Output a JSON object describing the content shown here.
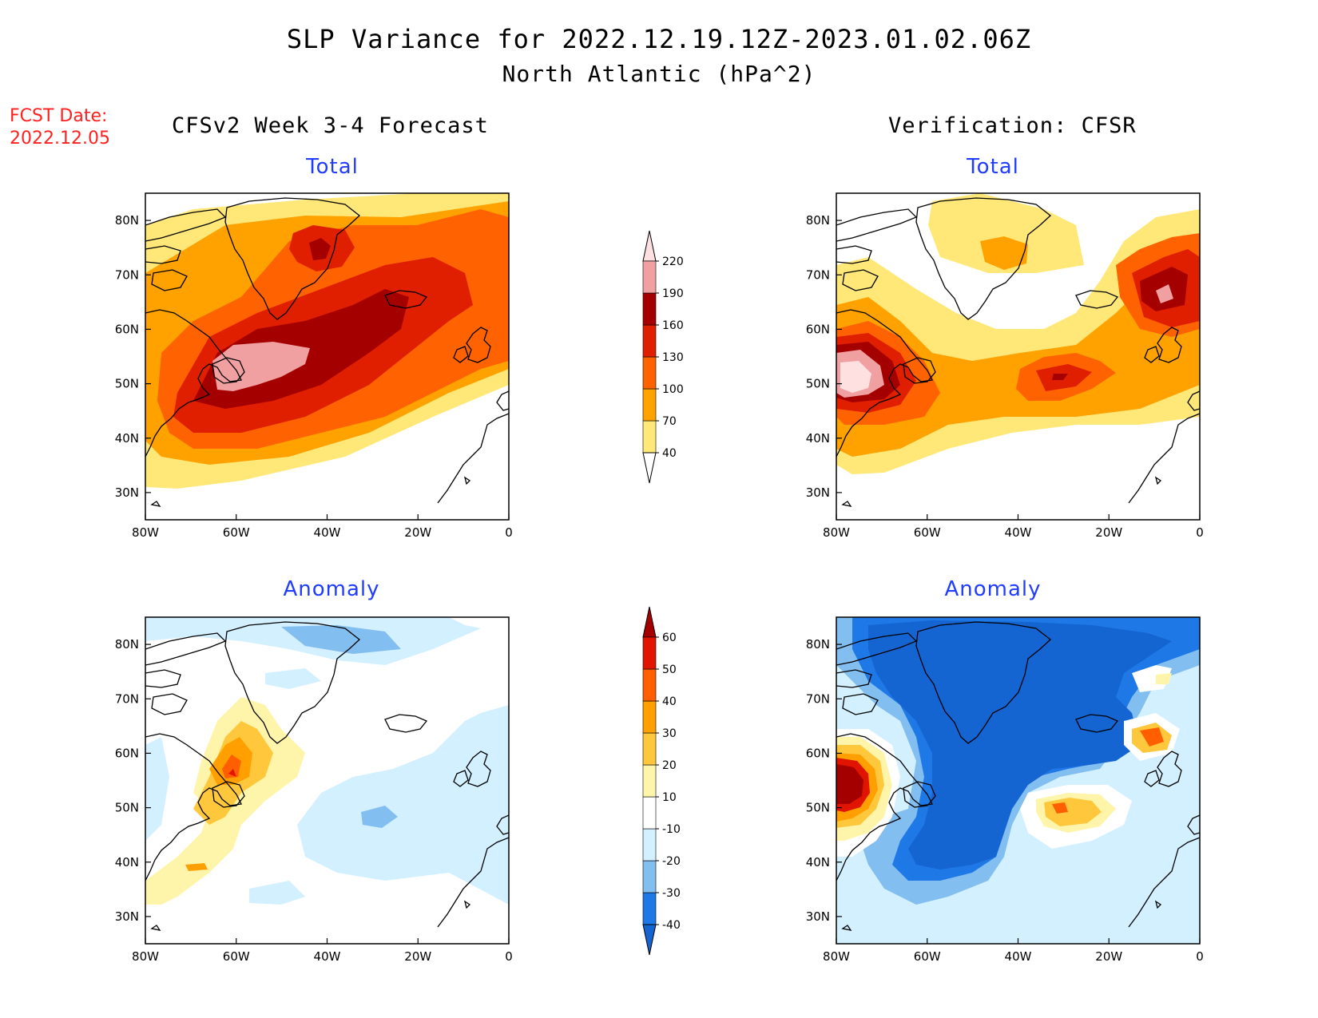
{
  "header": {
    "title_line1": "SLP Variance for 2022.12.19.12Z-2023.01.02.06Z",
    "title_line2": "North Atlantic (hPa^2)",
    "fcst_label": "FCST Date:",
    "fcst_date": "2022.12.05"
  },
  "columns": {
    "left": "CFSv2 Week 3-4 Forecast",
    "right": "Verification: CFSR"
  },
  "panels": {
    "top_left_title": "Total",
    "top_right_title": "Total",
    "bottom_left_title": "Anomaly",
    "bottom_right_title": "Anomaly"
  },
  "axes": {
    "lon_ticks": [
      "80W",
      "60W",
      "40W",
      "20W",
      "0"
    ],
    "lat_ticks": [
      "80N",
      "70N",
      "60N",
      "50N",
      "40N",
      "30N"
    ]
  },
  "colorbars": {
    "total": {
      "labels": [
        "40",
        "70",
        "100",
        "130",
        "160",
        "190",
        "220"
      ],
      "colors": [
        "#ffffff",
        "#ffe878",
        "#ffa200",
        "#ff6200",
        "#e01e00",
        "#a50000",
        "#f0a0a0",
        "#ffe0e0"
      ]
    },
    "anomaly": {
      "labels": [
        "-40",
        "-30",
        "-20",
        "-10",
        "10",
        "20",
        "30",
        "40",
        "50",
        "60"
      ],
      "colors": [
        "#1464d2",
        "#1e78e6",
        "#82bef0",
        "#d2f0ff",
        "#ffffff",
        "#fff5aa",
        "#ffc83c",
        "#ffa000",
        "#ff5f00",
        "#e11400",
        "#a50000"
      ]
    }
  },
  "colors": {
    "title_red": "#ff2020",
    "panel_title_blue": "#1f3cff"
  }
}
